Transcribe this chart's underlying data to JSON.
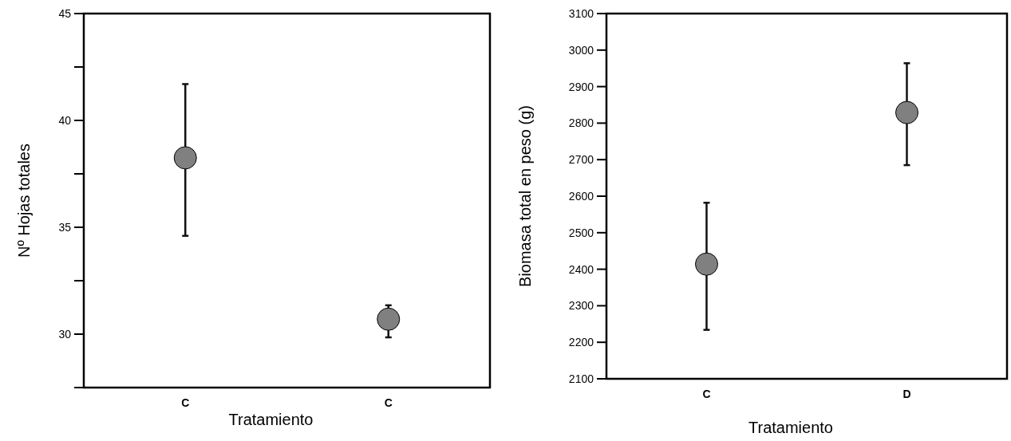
{
  "chart_data": [
    {
      "type": "scatter",
      "xlabel": "Tratamiento",
      "ylabel": "Nº Hojas totales",
      "categories": [
        "C",
        "C"
      ],
      "series": [
        {
          "color": "#808080",
          "values": [
            38.25,
            30.7
          ],
          "errors": [
            [
              34.6,
              41.7
            ],
            [
              29.85,
              31.35
            ]
          ]
        }
      ],
      "ylim": [
        27.5,
        45
      ],
      "yticks": [
        {
          "value": 27.5,
          "label": null
        },
        30,
        {
          "value": 32.5,
          "label": null
        },
        35,
        {
          "value": 37.5,
          "label": null
        },
        40,
        {
          "value": 42.5,
          "label": null
        },
        45
      ],
      "marker": "circle"
    },
    {
      "type": "scatter",
      "xlabel": "Tratamiento",
      "ylabel": "Biomasa total en peso (g)",
      "categories": [
        "C",
        "D"
      ],
      "series": [
        {
          "color": "#808080",
          "values": [
            2414,
            2829
          ],
          "errors": [
            [
              2234,
              2582
            ],
            [
              2685,
              2964
            ]
          ]
        }
      ],
      "ylim": [
        2100,
        3100
      ],
      "yticks": [
        2100,
        2200,
        2300,
        2400,
        2500,
        2600,
        2700,
        2800,
        2900,
        3000,
        3100
      ],
      "marker": "circle"
    }
  ]
}
